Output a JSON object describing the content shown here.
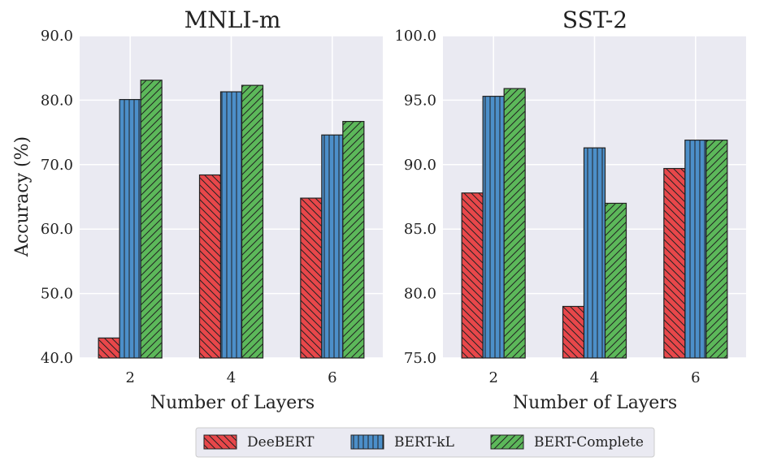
{
  "chart_data": [
    {
      "type": "bar",
      "title": "MNLI-m",
      "xlabel": "Number of Layers",
      "ylabel": "Accuracy (%)",
      "categories": [
        "2",
        "4",
        "6"
      ],
      "ylim": [
        40,
        90
      ],
      "yticks": [
        "40.0",
        "50.0",
        "60.0",
        "70.0",
        "80.0",
        "90.0"
      ],
      "ytick_values": [
        40,
        50,
        60,
        70,
        80,
        90
      ],
      "series": [
        {
          "name": "DeeBERT",
          "values": [
            43.1,
            68.4,
            64.8
          ]
        },
        {
          "name": "BERT-kL",
          "values": [
            80.1,
            81.3,
            74.6
          ]
        },
        {
          "name": "BERT-Complete",
          "values": [
            83.1,
            82.3,
            76.7
          ]
        }
      ]
    },
    {
      "type": "bar",
      "title": "SST-2",
      "xlabel": "Number of Layers",
      "ylabel": "",
      "categories": [
        "2",
        "4",
        "6"
      ],
      "ylim": [
        75,
        100
      ],
      "yticks": [
        "75.0",
        "80.0",
        "85.0",
        "90.0",
        "95.0",
        "100.0"
      ],
      "ytick_values": [
        75,
        80,
        85,
        90,
        95,
        100
      ],
      "series": [
        {
          "name": "DeeBERT",
          "values": [
            87.8,
            79.0,
            89.7
          ]
        },
        {
          "name": "BERT-kL",
          "values": [
            95.3,
            91.3,
            91.9
          ]
        },
        {
          "name": "BERT-Complete",
          "values": [
            95.9,
            87.0,
            91.9
          ]
        }
      ]
    }
  ],
  "legend": {
    "position": "bottom-center",
    "entries": [
      {
        "label": "DeeBERT",
        "color": "#e8474a",
        "hatch": "diagonal-back"
      },
      {
        "label": "BERT-kL",
        "color": "#4c8fc9",
        "hatch": "vertical"
      },
      {
        "label": "BERT-Complete",
        "color": "#5cb85a",
        "hatch": "diagonal-forward"
      }
    ]
  }
}
